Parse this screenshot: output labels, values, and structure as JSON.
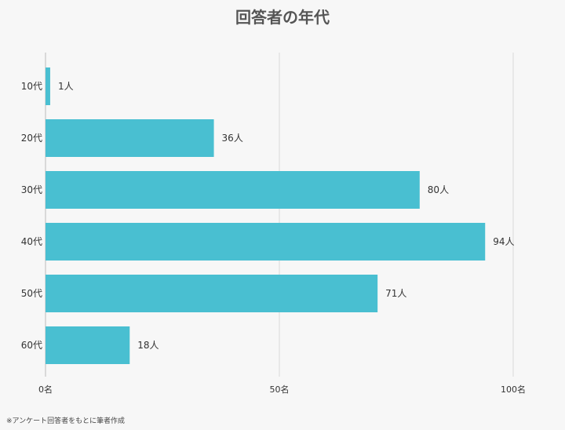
{
  "chart_data": {
    "type": "bar",
    "orientation": "horizontal",
    "title": "回答者の年代",
    "categories": [
      "10代",
      "20代",
      "30代",
      "40代",
      "50代",
      "60代"
    ],
    "values": [
      1,
      36,
      80,
      94,
      71,
      18
    ],
    "data_labels": [
      "1人",
      "36人",
      "80人",
      "94人",
      "71人",
      "18人"
    ],
    "x_ticks": [
      0,
      50,
      100
    ],
    "x_tick_labels": [
      "0名",
      "50名",
      "100名"
    ],
    "xlim": [
      0,
      100
    ],
    "grid": true,
    "legend": "none",
    "bar_color": "#49bfd1",
    "grid_color": "#d9d9d9",
    "axis_color": "#bbbbbb"
  },
  "footer": {
    "source_note": "※アンケート回答者をもとに筆者作成"
  }
}
